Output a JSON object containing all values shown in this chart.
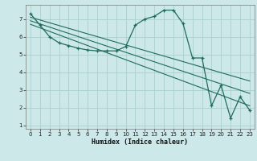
{
  "bg_color": "#cce8e8",
  "grid_color": "#aacfcf",
  "line_color": "#1e6b5e",
  "xlabel": "Humidex (Indice chaleur)",
  "xlim": [
    -0.5,
    23.5
  ],
  "ylim": [
    0.8,
    7.8
  ],
  "xticks": [
    0,
    1,
    2,
    3,
    4,
    5,
    6,
    7,
    8,
    9,
    10,
    11,
    12,
    13,
    14,
    15,
    16,
    17,
    18,
    19,
    20,
    21,
    22,
    23
  ],
  "yticks": [
    1,
    2,
    3,
    4,
    5,
    6,
    7
  ],
  "series": [
    {
      "x": [
        0,
        1,
        2,
        3,
        4,
        5,
        6,
        7,
        8,
        9,
        10,
        11,
        12,
        13,
        14,
        15,
        16,
        17,
        18,
        19,
        20,
        21,
        22,
        23
      ],
      "y": [
        7.3,
        6.65,
        6.0,
        5.65,
        5.5,
        5.35,
        5.25,
        5.2,
        5.2,
        5.2,
        5.45,
        6.65,
        7.0,
        7.15,
        7.5,
        7.5,
        6.75,
        4.8,
        4.8,
        2.1,
        3.25,
        1.4,
        2.6,
        1.85
      ],
      "marker": true
    },
    {
      "x": [
        0,
        23
      ],
      "y": [
        7.1,
        3.5
      ],
      "marker": false
    },
    {
      "x": [
        0,
        23
      ],
      "y": [
        6.9,
        2.8
      ],
      "marker": false
    },
    {
      "x": [
        0,
        23
      ],
      "y": [
        6.7,
        2.1
      ],
      "marker": false
    }
  ]
}
